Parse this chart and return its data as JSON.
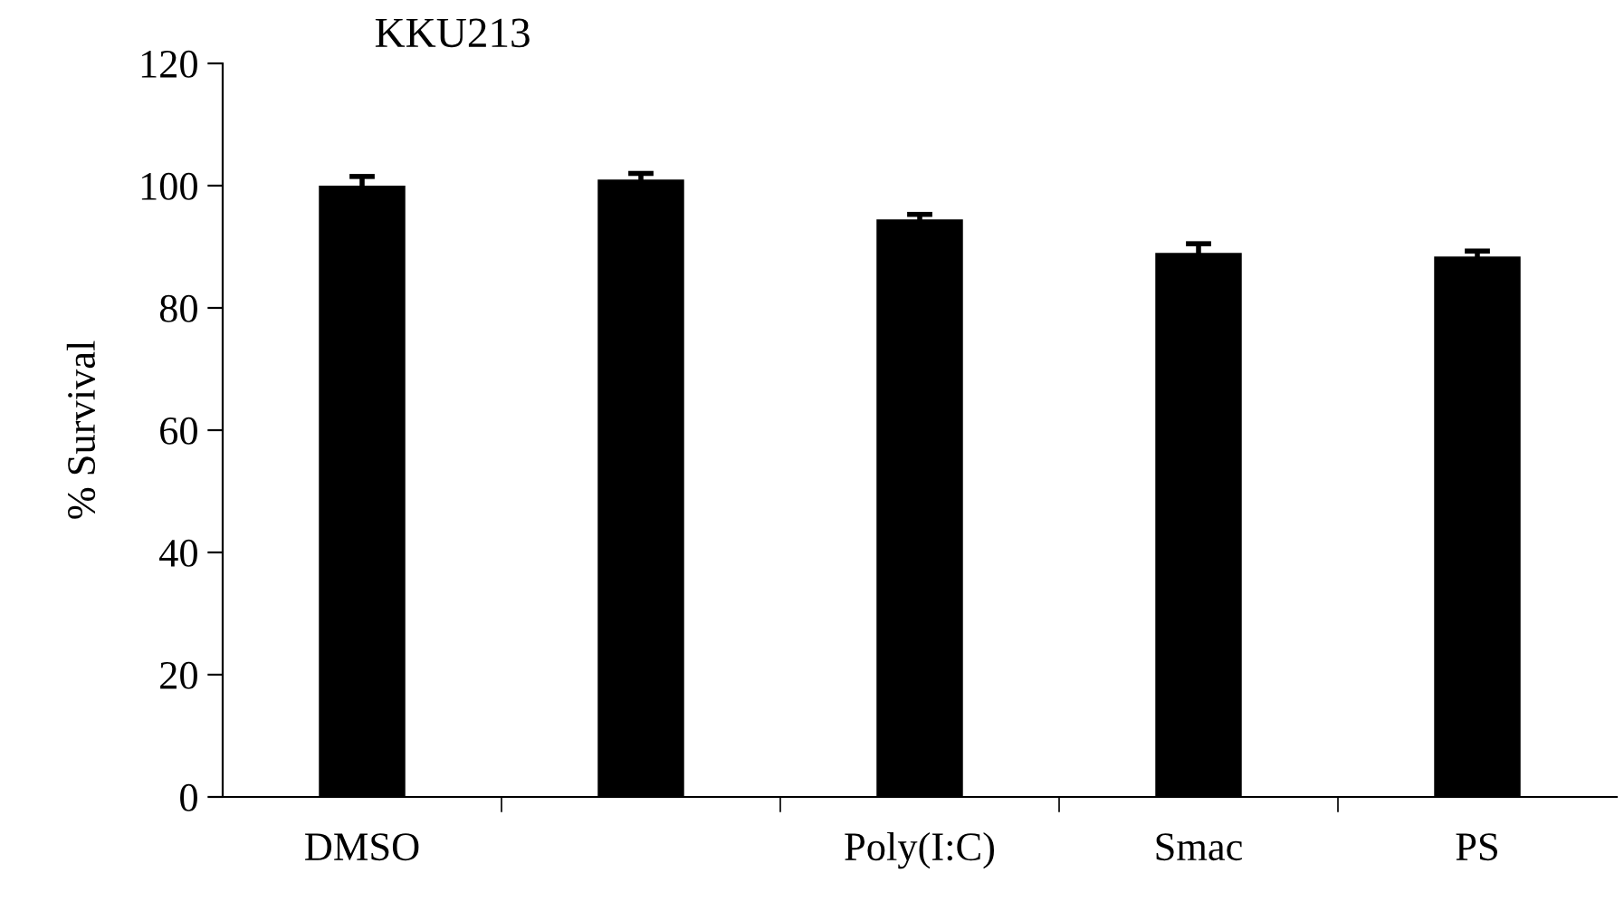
{
  "chart_data": {
    "type": "bar",
    "title": "KKU213",
    "ylabel": "% Survival",
    "categories": [
      "DMSO",
      null,
      "Poly(I:C)",
      "Smac",
      "PS"
    ],
    "values": [
      100,
      101,
      94.5,
      89,
      88.4
    ],
    "errors": [
      1.5,
      1,
      0.8,
      1.5,
      0.9
    ],
    "color": "#000000",
    "ylim": [
      0,
      120
    ],
    "yticks": [
      0,
      20,
      40,
      60,
      80,
      100,
      120
    ],
    "grid": false,
    "legend": false
  }
}
